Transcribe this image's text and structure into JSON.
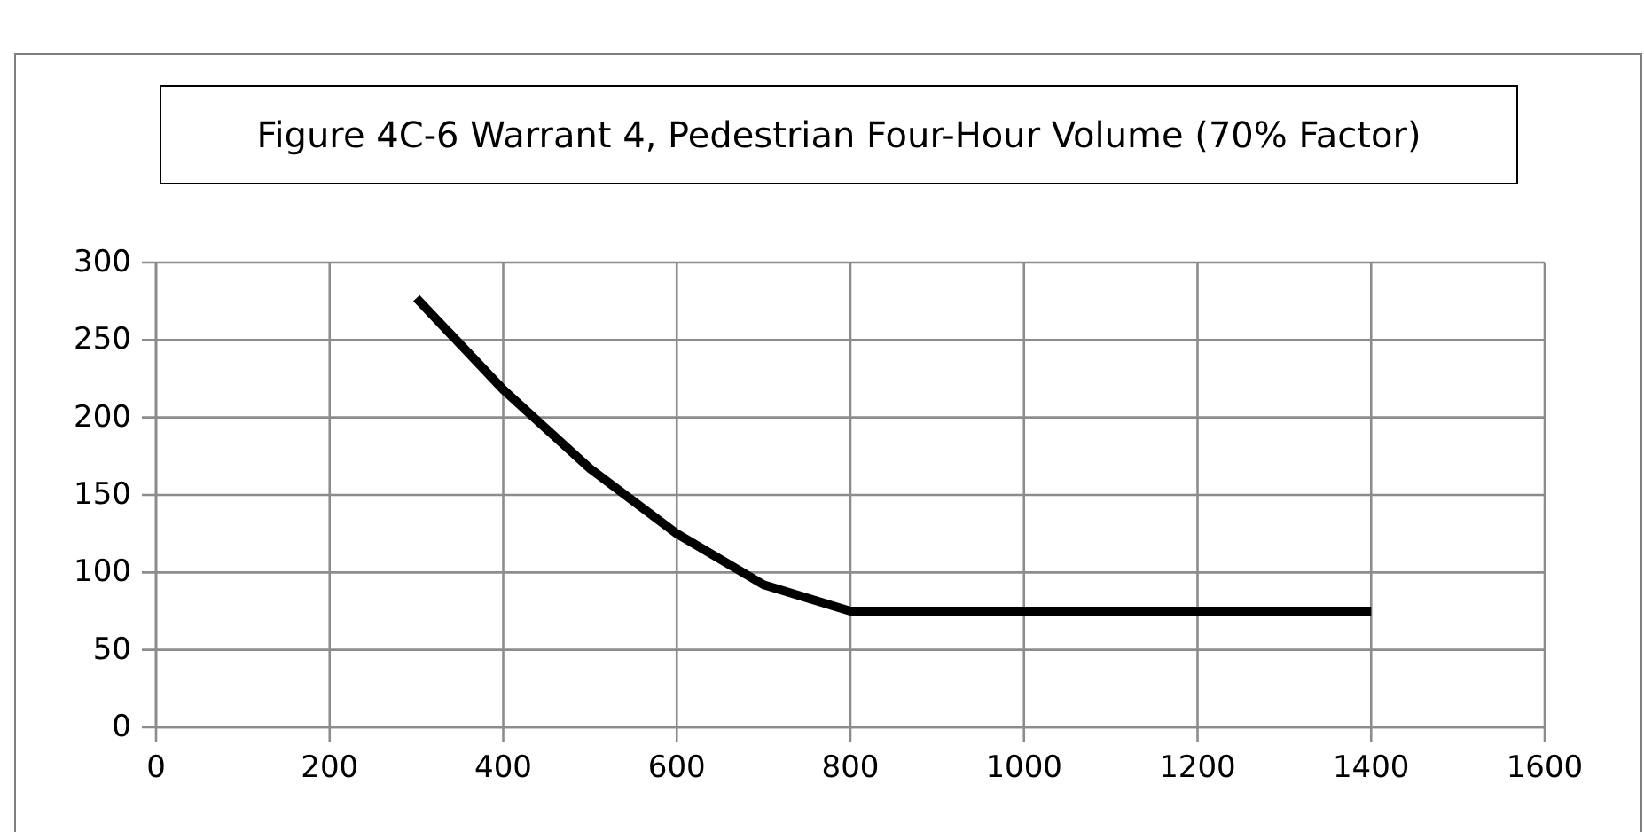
{
  "chart_data": {
    "type": "line",
    "title": "Figure 4C-6 Warrant 4, Pedestrian Four-Hour Volume (70% Factor)",
    "x": [
      300,
      400,
      500,
      600,
      700,
      800,
      1400
    ],
    "series": [
      {
        "color": "#000000",
        "values": [
          277,
          218,
          167,
          125,
          92,
          75,
          75
        ]
      }
    ],
    "xlim": [
      0,
      1600
    ],
    "xticks": [
      0,
      200,
      400,
      600,
      800,
      1000,
      1200,
      1400,
      1600
    ],
    "ylim": [
      0,
      300
    ],
    "yticks": [
      0,
      50,
      100,
      150,
      200,
      250,
      300
    ],
    "grid": true,
    "marker": "none",
    "line_style": "solid"
  }
}
